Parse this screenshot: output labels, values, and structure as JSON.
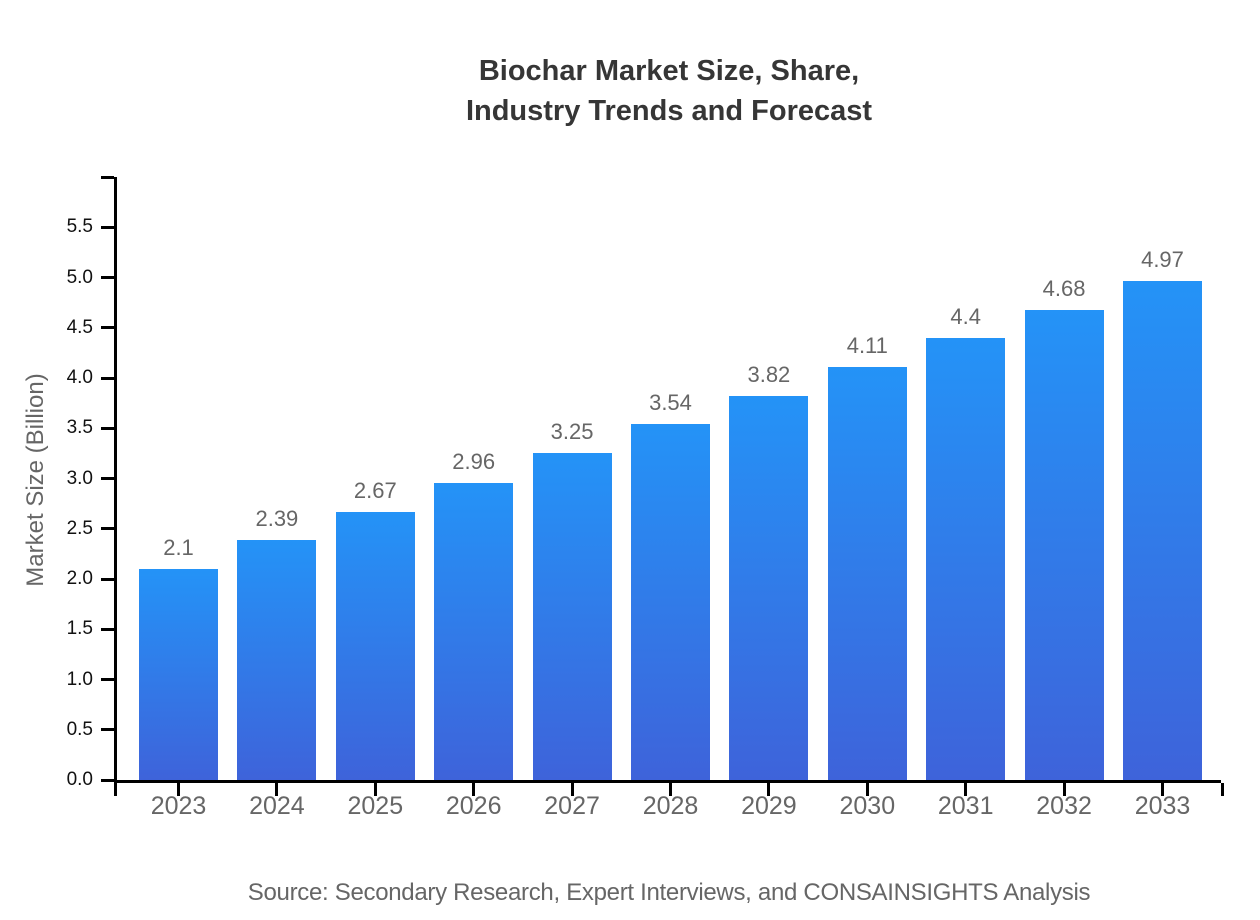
{
  "page": {
    "background": "#ffffff"
  },
  "chart_data": {
    "type": "bar",
    "title_lines": [
      "Biochar Market Size, Share,",
      "Industry Trends and Forecast"
    ],
    "ylabel": "Market Size (Billion)",
    "xlabel": "",
    "categories": [
      "2023",
      "2024",
      "2025",
      "2026",
      "2027",
      "2028",
      "2029",
      "2030",
      "2031",
      "2032",
      "2033"
    ],
    "values": [
      2.1,
      2.39,
      2.67,
      2.96,
      3.25,
      3.54,
      3.82,
      4.11,
      4.4,
      4.68,
      4.97
    ],
    "value_labels": [
      "2.1",
      "2.39",
      "2.67",
      "2.96",
      "3.25",
      "3.54",
      "3.82",
      "4.11",
      "4.4",
      "4.68",
      "4.97"
    ],
    "ylim": [
      0,
      6
    ],
    "ytick_step": 0.5,
    "ytick_labels": [
      "0.0",
      "0.5",
      "1.0",
      "1.5",
      "2.0",
      "2.5",
      "3.0",
      "3.5",
      "4.0",
      "4.5",
      "5.0",
      "5.5"
    ],
    "grid": false,
    "legend_position": "none",
    "source_note": "Source: Secondary Research, Expert Interviews, and CONSAINSIGHTS Analysis"
  },
  "colors": {
    "bar_gradient_top": "#2493F7",
    "bar_gradient_bottom": "#3E63DA",
    "axis_line": "#000000",
    "y_tick_label": "#111111",
    "x_tick_label": "#666666",
    "value_label": "#666666",
    "title": "#363636",
    "axis_title": "#666666",
    "source": "#666666"
  }
}
